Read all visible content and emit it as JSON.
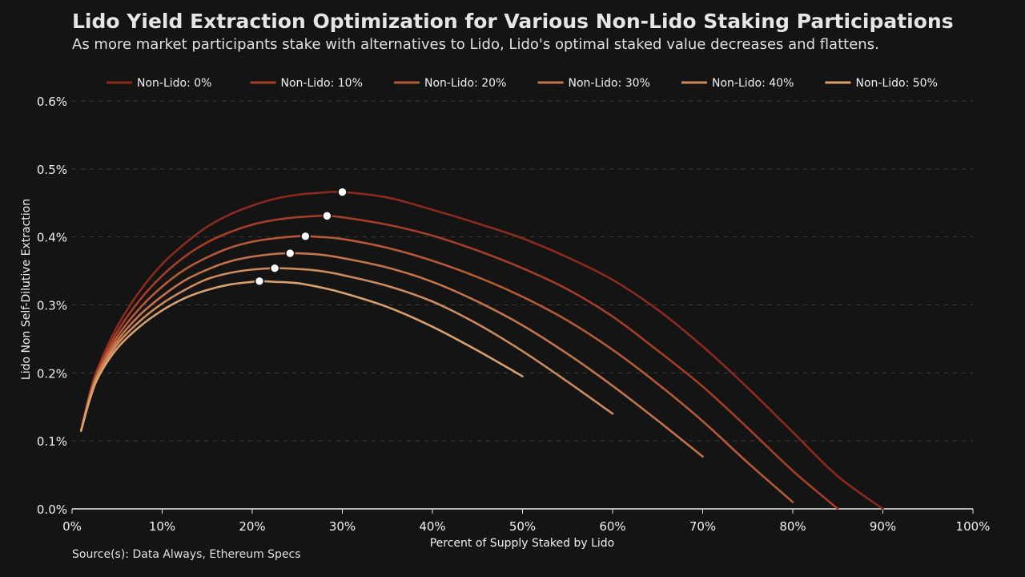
{
  "chart_data": {
    "type": "line",
    "title": "Lido Yield Extraction Optimization for Various Non-Lido Staking Participations",
    "subtitle": "As more market participants stake with alternatives to Lido, Lido's optimal staked value decreases and flattens.",
    "xlabel": "Percent of Supply Staked by Lido",
    "ylabel": "Lido Non Self-Dilutive Extraction",
    "source": "Source(s): Data Always, Ethereum Specs",
    "xlim": [
      0,
      100
    ],
    "ylim": [
      0,
      0.6
    ],
    "x_ticks": [
      "0%",
      "10%",
      "20%",
      "30%",
      "40%",
      "50%",
      "60%",
      "70%",
      "80%",
      "90%",
      "100%"
    ],
    "y_ticks": [
      "0.0%",
      "0.1%",
      "0.2%",
      "0.3%",
      "0.4%",
      "0.5%",
      "0.6%"
    ],
    "grid": "horizontal dashed",
    "legend_position": "top",
    "series": [
      {
        "name": "Non-Lido: 0%",
        "color": "#8b2a1e",
        "x": [
          1,
          2,
          3,
          5,
          7.5,
          10,
          12.5,
          15,
          17.5,
          20,
          22.5,
          25,
          27.5,
          30,
          35,
          40,
          45,
          50,
          55,
          60,
          65,
          70,
          75,
          80,
          85,
          90
        ],
        "y": [
          0.115,
          0.172,
          0.212,
          0.268,
          0.32,
          0.36,
          0.39,
          0.415,
          0.433,
          0.446,
          0.456,
          0.462,
          0.465,
          0.466,
          0.458,
          0.44,
          0.42,
          0.398,
          0.37,
          0.337,
          0.293,
          0.239,
          0.178,
          0.113,
          0.048,
          0.0
        ],
        "optimum": [
          30,
          0.466
        ]
      },
      {
        "name": "Non-Lido: 10%",
        "color": "#a43e28",
        "x": [
          1,
          2,
          3,
          5,
          7.5,
          10,
          12.5,
          15,
          17.5,
          20,
          22.5,
          25,
          27.5,
          28.3,
          30,
          35,
          40,
          45,
          50,
          55,
          60,
          65,
          70,
          75,
          80,
          85
        ],
        "y": [
          0.115,
          0.17,
          0.208,
          0.26,
          0.307,
          0.343,
          0.371,
          0.392,
          0.407,
          0.418,
          0.425,
          0.429,
          0.431,
          0.431,
          0.429,
          0.418,
          0.402,
          0.38,
          0.354,
          0.323,
          0.283,
          0.233,
          0.18,
          0.119,
          0.056,
          0.0
        ],
        "optimum": [
          28.3,
          0.431
        ]
      },
      {
        "name": "Non-Lido: 20%",
        "color": "#b55a37",
        "x": [
          1,
          2,
          3,
          5,
          7.5,
          10,
          12.5,
          15,
          17.5,
          20,
          22.5,
          25,
          25.9,
          27.5,
          30,
          35,
          40,
          45,
          50,
          55,
          60,
          65,
          70,
          75,
          80
        ],
        "y": [
          0.115,
          0.168,
          0.205,
          0.253,
          0.295,
          0.327,
          0.352,
          0.37,
          0.384,
          0.393,
          0.398,
          0.401,
          0.401,
          0.4,
          0.397,
          0.384,
          0.365,
          0.341,
          0.312,
          0.277,
          0.234,
          0.184,
          0.129,
          0.068,
          0.01
        ],
        "optimum": [
          25.9,
          0.401
        ]
      },
      {
        "name": "Non-Lido: 30%",
        "color": "#c3744a",
        "x": [
          1,
          2,
          3,
          5,
          7.5,
          10,
          12.5,
          15,
          17.5,
          20,
          22.5,
          24.2,
          25,
          27.5,
          30,
          35,
          40,
          45,
          50,
          55,
          60,
          65,
          70
        ],
        "y": [
          0.115,
          0.166,
          0.202,
          0.247,
          0.285,
          0.313,
          0.336,
          0.352,
          0.364,
          0.371,
          0.375,
          0.376,
          0.376,
          0.374,
          0.369,
          0.355,
          0.334,
          0.305,
          0.27,
          0.228,
          0.181,
          0.13,
          0.077
        ],
        "optimum": [
          24.2,
          0.376
        ]
      },
      {
        "name": "Non-Lido: 40%",
        "color": "#cd8a5c",
        "x": [
          1,
          2,
          3,
          5,
          7.5,
          10,
          12.5,
          15,
          17.5,
          20,
          22.5,
          25,
          27.5,
          30,
          35,
          40,
          45,
          50,
          55,
          60
        ],
        "y": [
          0.115,
          0.164,
          0.199,
          0.242,
          0.276,
          0.302,
          0.322,
          0.338,
          0.347,
          0.352,
          0.354,
          0.353,
          0.35,
          0.344,
          0.328,
          0.305,
          0.272,
          0.232,
          0.187,
          0.14
        ],
        "optimum": [
          22.5,
          0.354
        ]
      },
      {
        "name": "Non-Lido: 50%",
        "color": "#d9a06f",
        "x": [
          1,
          2,
          3,
          5,
          7.5,
          10,
          12.5,
          15,
          17.5,
          20,
          20.8,
          22.5,
          25,
          27.5,
          30,
          35,
          40,
          45,
          50
        ],
        "y": [
          0.115,
          0.162,
          0.196,
          0.236,
          0.268,
          0.292,
          0.31,
          0.322,
          0.33,
          0.334,
          0.335,
          0.334,
          0.332,
          0.326,
          0.318,
          0.297,
          0.268,
          0.233,
          0.195
        ],
        "optimum": [
          20.8,
          0.335
        ]
      }
    ]
  }
}
